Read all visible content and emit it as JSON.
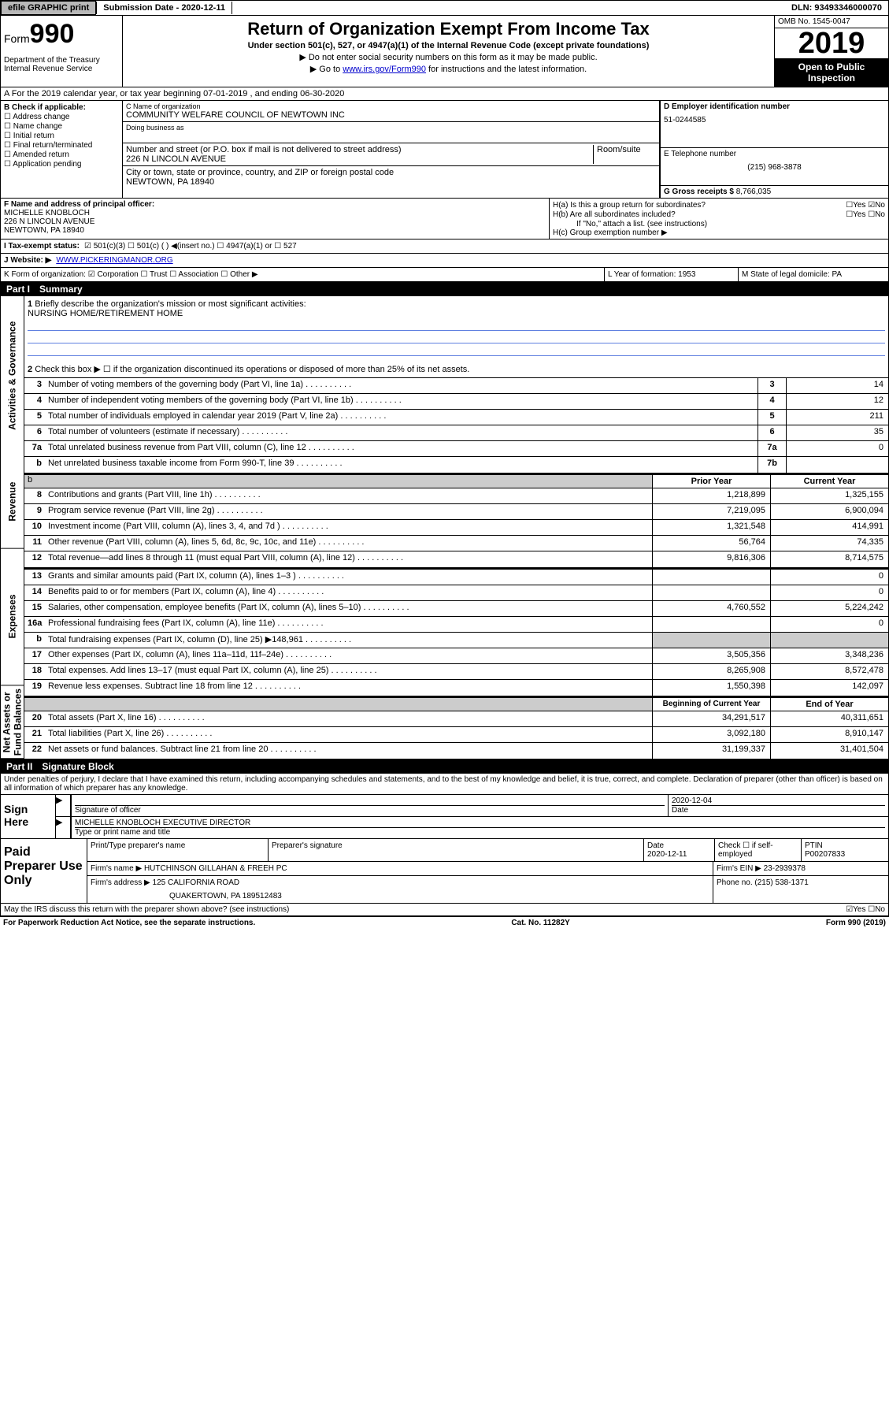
{
  "topbar": {
    "efile": "efile GRAPHIC print",
    "submission": "Submission Date - 2020-12-11",
    "dln": "DLN: 93493346000070"
  },
  "header": {
    "form_prefix": "Form",
    "form_num": "990",
    "dept": "Department of the Treasury\nInternal Revenue Service",
    "title": "Return of Organization Exempt From Income Tax",
    "subtitle": "Under section 501(c), 527, or 4947(a)(1) of the Internal Revenue Code (except private foundations)",
    "note1": "▶ Do not enter social security numbers on this form as it may be made public.",
    "note2_pre": "▶ Go to ",
    "note2_link": "www.irs.gov/Form990",
    "note2_post": " for instructions and the latest information.",
    "omb": "OMB No. 1545-0047",
    "year": "2019",
    "inspect": "Open to Public Inspection"
  },
  "line_a": "A For the 2019 calendar year, or tax year beginning 07-01-2019    , and ending 06-30-2020",
  "b": {
    "lbl": "B Check if applicable:",
    "opts": [
      "☐ Address change",
      "☐ Name change",
      "☐ Initial return",
      "☐ Final return/terminated",
      "☐ Amended return",
      "☐ Application pending"
    ]
  },
  "c": {
    "lbl": "C Name of organization",
    "name": "COMMUNITY WELFARE COUNCIL OF NEWTOWN INC",
    "dba_lbl": "Doing business as",
    "addr_lbl": "Number and street (or P.O. box if mail is not delivered to street address)",
    "room_lbl": "Room/suite",
    "addr": "226 N LINCOLN AVENUE",
    "city_lbl": "City or town, state or province, country, and ZIP or foreign postal code",
    "city": "NEWTOWN, PA  18940"
  },
  "d": {
    "lbl": "D Employer identification number",
    "val": "51-0244585"
  },
  "e": {
    "lbl": "E Telephone number",
    "val": "(215) 968-3878"
  },
  "g": {
    "lbl": "G Gross receipts $",
    "val": "8,766,035"
  },
  "f": {
    "lbl": "F Name and address of principal officer:",
    "name": "MICHELLE KNOBLOCH",
    "addr": "226 N LINCOLN AVENUE",
    "city": "NEWTOWN, PA  18940"
  },
  "h": {
    "a": "H(a)  Is this a group return for subordinates?",
    "a_yes": "☐Yes ☑No",
    "b": "H(b)  Are all subordinates included?",
    "b_yn": "☐Yes ☐No",
    "b_note": "If \"No,\" attach a list. (see instructions)",
    "c": "H(c)  Group exemption number ▶"
  },
  "i": {
    "lbl": "I   Tax-exempt status:",
    "opts": "☑ 501(c)(3)    ☐  501(c) (  ) ◀(insert no.)    ☐  4947(a)(1) or   ☐  527"
  },
  "j": {
    "lbl": "J   Website: ▶",
    "val": "WWW.PICKERINGMANOR.ORG"
  },
  "k": {
    "lbl": "K Form of organization:  ☑ Corporation  ☐ Trust  ☐ Association  ☐ Other ▶"
  },
  "l": {
    "lbl": "L Year of formation: 1953"
  },
  "m": {
    "lbl": "M State of legal domicile: PA"
  },
  "part1": {
    "label": "Part I",
    "title": "Summary"
  },
  "summary": {
    "q1": "Briefly describe the organization's mission or most significant activities:",
    "mission": "NURSING HOME/RETIREMENT HOME",
    "q2": "Check this box ▶ ☐  if the organization discontinued its operations or disposed of more than 25% of its net assets.",
    "rows_ag": [
      {
        "n": "3",
        "d": "Number of voting members of the governing body (Part VI, line 1a)",
        "c": "3",
        "v": "14"
      },
      {
        "n": "4",
        "d": "Number of independent voting members of the governing body (Part VI, line 1b)",
        "c": "4",
        "v": "12"
      },
      {
        "n": "5",
        "d": "Total number of individuals employed in calendar year 2019 (Part V, line 2a)",
        "c": "5",
        "v": "211"
      },
      {
        "n": "6",
        "d": "Total number of volunteers (estimate if necessary)",
        "c": "6",
        "v": "35"
      },
      {
        "n": "7a",
        "d": "Total unrelated business revenue from Part VIII, column (C), line 12",
        "c": "7a",
        "v": "0"
      },
      {
        "n": "b",
        "d": "Net unrelated business taxable income from Form 990-T, line 39",
        "c": "7b",
        "v": ""
      }
    ],
    "hdr_prior": "Prior Year",
    "hdr_curr": "Current Year",
    "rows_rev": [
      {
        "n": "8",
        "d": "Contributions and grants (Part VIII, line 1h)",
        "p": "1,218,899",
        "c": "1,325,155"
      },
      {
        "n": "9",
        "d": "Program service revenue (Part VIII, line 2g)",
        "p": "7,219,095",
        "c": "6,900,094"
      },
      {
        "n": "10",
        "d": "Investment income (Part VIII, column (A), lines 3, 4, and 7d )",
        "p": "1,321,548",
        "c": "414,991"
      },
      {
        "n": "11",
        "d": "Other revenue (Part VIII, column (A), lines 5, 6d, 8c, 9c, 10c, and 11e)",
        "p": "56,764",
        "c": "74,335"
      },
      {
        "n": "12",
        "d": "Total revenue—add lines 8 through 11 (must equal Part VIII, column (A), line 12)",
        "p": "9,816,306",
        "c": "8,714,575"
      }
    ],
    "rows_exp": [
      {
        "n": "13",
        "d": "Grants and similar amounts paid (Part IX, column (A), lines 1–3 )",
        "p": "",
        "c": "0"
      },
      {
        "n": "14",
        "d": "Benefits paid to or for members (Part IX, column (A), line 4)",
        "p": "",
        "c": "0"
      },
      {
        "n": "15",
        "d": "Salaries, other compensation, employee benefits (Part IX, column (A), lines 5–10)",
        "p": "4,760,552",
        "c": "5,224,242"
      },
      {
        "n": "16a",
        "d": "Professional fundraising fees (Part IX, column (A), line 11e)",
        "p": "",
        "c": "0"
      },
      {
        "n": "b",
        "d": "Total fundraising expenses (Part IX, column (D), line 25) ▶148,961",
        "p": "grey",
        "c": "grey"
      },
      {
        "n": "17",
        "d": "Other expenses (Part IX, column (A), lines 11a–11d, 11f–24e)",
        "p": "3,505,356",
        "c": "3,348,236"
      },
      {
        "n": "18",
        "d": "Total expenses. Add lines 13–17 (must equal Part IX, column (A), line 25)",
        "p": "8,265,908",
        "c": "8,572,478"
      },
      {
        "n": "19",
        "d": "Revenue less expenses. Subtract line 18 from line 12",
        "p": "1,550,398",
        "c": "142,097"
      }
    ],
    "hdr_beg": "Beginning of Current Year",
    "hdr_end": "End of Year",
    "rows_na": [
      {
        "n": "20",
        "d": "Total assets (Part X, line 16)",
        "p": "34,291,517",
        "c": "40,311,651"
      },
      {
        "n": "21",
        "d": "Total liabilities (Part X, line 26)",
        "p": "3,092,180",
        "c": "8,910,147"
      },
      {
        "n": "22",
        "d": "Net assets or fund balances. Subtract line 21 from line 20",
        "p": "31,199,337",
        "c": "31,401,504"
      }
    ]
  },
  "vtabs": [
    "Activities & Governance",
    "Revenue",
    "Expenses",
    "Net Assets or Fund Balances"
  ],
  "part2": {
    "label": "Part II",
    "title": "Signature Block"
  },
  "perjury": "Under penalties of perjury, I declare that I have examined this return, including accompanying schedules and statements, and to the best of my knowledge and belief, it is true, correct, and complete. Declaration of preparer (other than officer) is based on all information of which preparer has any knowledge.",
  "sign": {
    "here": "Sign Here",
    "sig_lbl": "Signature of officer",
    "date": "2020-12-04",
    "date_lbl": "Date",
    "name": "MICHELLE KNOBLOCH  EXECUTIVE DIRECTOR",
    "name_lbl": "Type or print name and title"
  },
  "paid": {
    "title": "Paid Preparer Use Only",
    "h1": "Print/Type preparer's name",
    "h2": "Preparer's signature",
    "h3": "Date",
    "date": "2020-12-11",
    "h4": "Check ☐ if self-employed",
    "h5": "PTIN",
    "ptin": "P00207833",
    "firm_lbl": "Firm's name    ▶",
    "firm": "HUTCHINSON GILLAHAN & FREEH PC",
    "ein_lbl": "Firm's EIN ▶",
    "ein": "23-2939378",
    "addr_lbl": "Firm's address ▶",
    "addr": "125 CALIFORNIA ROAD",
    "addr2": "QUAKERTOWN, PA  189512483",
    "phone_lbl": "Phone no.",
    "phone": "(215) 538-1371"
  },
  "discuss": {
    "q": "May the IRS discuss this return with the preparer shown above? (see instructions)",
    "yn": "☑Yes  ☐No"
  },
  "footer": {
    "left": "For Paperwork Reduction Act Notice, see the separate instructions.",
    "mid": "Cat. No. 11282Y",
    "right": "Form 990 (2019)"
  }
}
